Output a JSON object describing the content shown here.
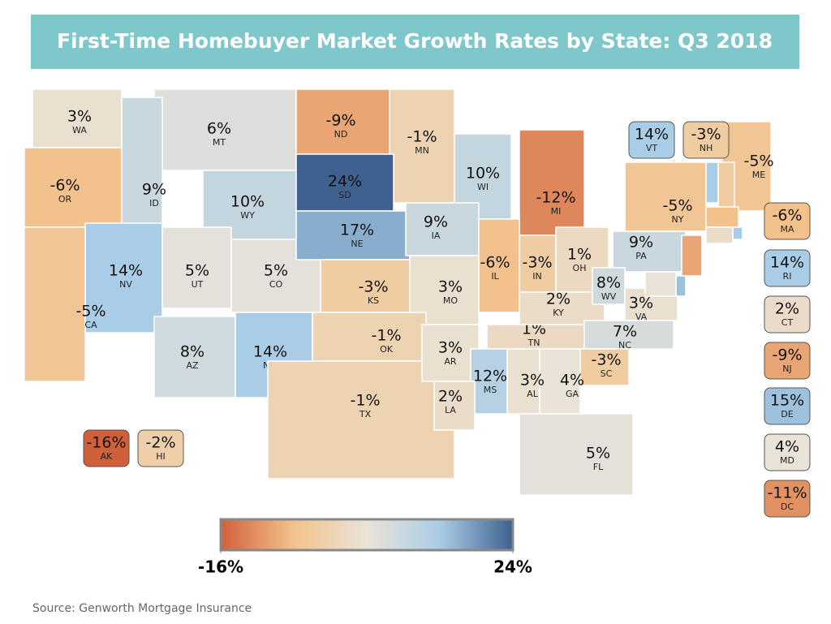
{
  "chart_data": {
    "type": "map",
    "title": "First-Time Homebuyer Market Growth Rates by State: Q3 2018",
    "source": "Source: Genworth Mortgage Insurance",
    "categories": [
      "WA",
      "MT",
      "ND",
      "MN",
      "OR",
      "ID",
      "WY",
      "SD",
      "WI",
      "MI",
      "NV",
      "UT",
      "CO",
      "NE",
      "IA",
      "CA",
      "KS",
      "MO",
      "IL",
      "IN",
      "OH",
      "PA",
      "NY",
      "ME",
      "VT",
      "NH",
      "AZ",
      "NM",
      "OK",
      "TX",
      "AR",
      "TN",
      "KY",
      "WV",
      "VA",
      "NC",
      "SC",
      "GA",
      "AL",
      "MS",
      "LA",
      "FL",
      "AK",
      "HI",
      "MA",
      "RI",
      "CT",
      "NJ",
      "DE",
      "MD",
      "DC"
    ],
    "values": [
      3,
      6,
      -9,
      -1,
      -6,
      9,
      10,
      24,
      10,
      -12,
      14,
      5,
      5,
      17,
      9,
      -5,
      -3,
      3,
      -6,
      -3,
      1,
      9,
      -5,
      -5,
      14,
      -3,
      8,
      14,
      -1,
      -1,
      3,
      1,
      2,
      8,
      3,
      7,
      -3,
      4,
      3,
      12,
      2,
      5,
      -16,
      -2,
      -6,
      14,
      2,
      -9,
      15,
      4,
      -11
    ],
    "value_labels": [
      "3%",
      "6%",
      "-9%",
      "-1%",
      "-6%",
      "9%",
      "10%",
      "24%",
      "10%",
      "-12%",
      "14%",
      "5%",
      "5%",
      "17%",
      "9%",
      "-5%",
      "-3%",
      "3%",
      "-6%",
      "-3%",
      "1%",
      "9%",
      "-5%",
      "-5%",
      "14%",
      "-3%",
      "8%",
      "14%",
      "-1%",
      "-1%",
      "3%",
      "1%",
      "2%",
      "8%",
      "3%",
      "7%",
      "-3%",
      "4%",
      "3%",
      "12%",
      "2%",
      "5%",
      "-16%",
      "-2%",
      "-6%",
      "14%",
      "2%",
      "-9%",
      "15%",
      "4%",
      "-11%"
    ],
    "colorscale": [
      "#d0603a",
      "#f3c28c",
      "#e9e3d8",
      "#a9cde6",
      "#3e6190"
    ],
    "clim": [
      -16,
      24
    ],
    "cticks": [
      {
        "value": -16,
        "label": "-16%"
      },
      {
        "value": 24,
        "label": "24%"
      }
    ]
  }
}
